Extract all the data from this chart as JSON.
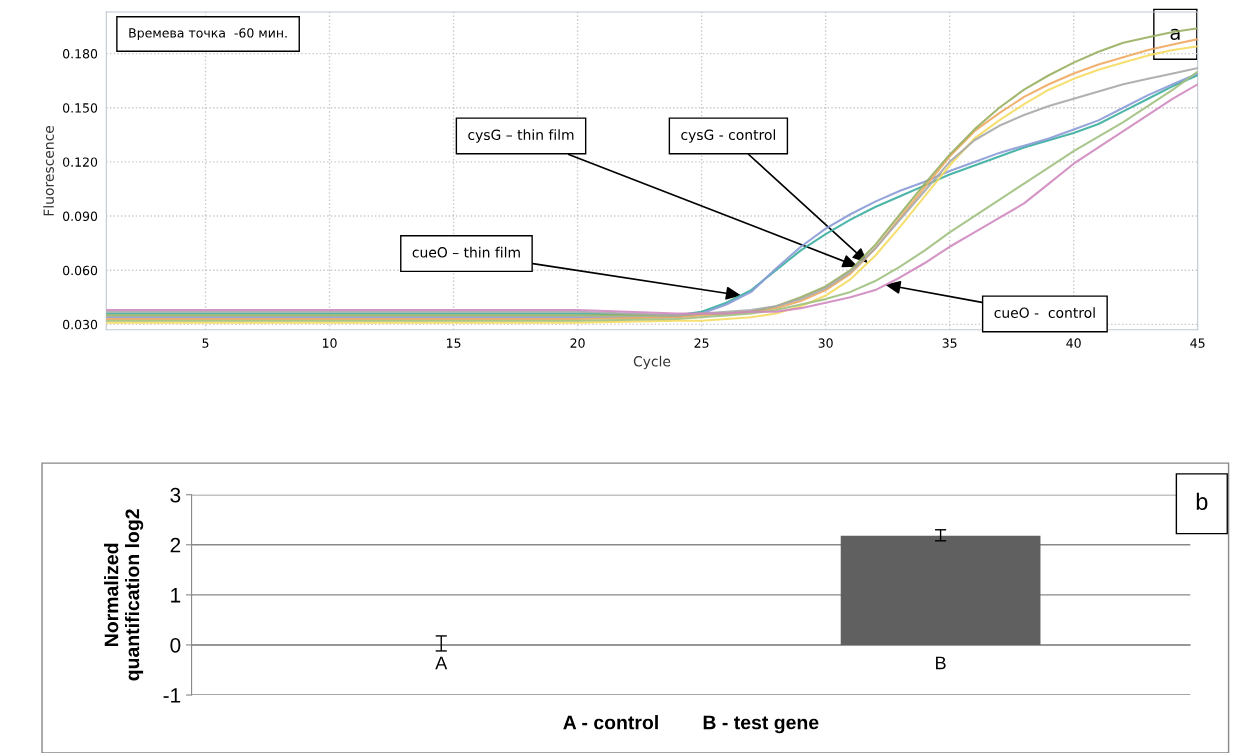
{
  "chart_data": [
    {
      "type": "line",
      "title": "Времева точка  -60 мин.",
      "xlabel": "Cycle",
      "ylabel": "Fluorescence",
      "x": [
        1,
        5,
        10,
        15,
        20,
        24,
        25,
        26,
        27,
        28,
        29,
        30,
        31,
        32,
        33,
        34,
        35,
        36,
        37,
        38,
        39,
        40,
        41,
        42,
        43,
        44,
        45
      ],
      "series": [
        {
          "color": "#3aaea0",
          "values": [
            0.036,
            0.036,
            0.036,
            0.036,
            0.036,
            0.035,
            0.037,
            0.042,
            0.049,
            0.06,
            0.071,
            0.08,
            0.088,
            0.095,
            0.101,
            0.107,
            0.113,
            0.118,
            0.123,
            0.128,
            0.132,
            0.136,
            0.141,
            0.148,
            0.155,
            0.162,
            0.168
          ]
        },
        {
          "color": "#8a9ad6",
          "values": [
            0.034,
            0.034,
            0.034,
            0.034,
            0.034,
            0.034,
            0.036,
            0.041,
            0.048,
            0.061,
            0.073,
            0.083,
            0.091,
            0.098,
            0.104,
            0.109,
            0.115,
            0.12,
            0.125,
            0.129,
            0.133,
            0.138,
            0.143,
            0.15,
            0.157,
            0.163,
            0.169
          ]
        },
        {
          "color": "#f0a860",
          "values": [
            0.033,
            0.033,
            0.033,
            0.033,
            0.033,
            0.034,
            0.035,
            0.036,
            0.037,
            0.039,
            0.043,
            0.049,
            0.058,
            0.072,
            0.089,
            0.106,
            0.123,
            0.137,
            0.147,
            0.156,
            0.163,
            0.169,
            0.174,
            0.178,
            0.182,
            0.185,
            0.188
          ]
        },
        {
          "color": "#98b060",
          "values": [
            0.035,
            0.035,
            0.035,
            0.035,
            0.035,
            0.035,
            0.036,
            0.036,
            0.037,
            0.04,
            0.045,
            0.051,
            0.06,
            0.074,
            0.091,
            0.108,
            0.124,
            0.138,
            0.15,
            0.16,
            0.168,
            0.175,
            0.181,
            0.186,
            0.189,
            0.192,
            0.194
          ]
        },
        {
          "color": "#f5dc60",
          "values": [
            0.031,
            0.031,
            0.031,
            0.031,
            0.031,
            0.032,
            0.032,
            0.033,
            0.034,
            0.036,
            0.04,
            0.046,
            0.055,
            0.068,
            0.084,
            0.101,
            0.118,
            0.133,
            0.143,
            0.152,
            0.16,
            0.166,
            0.171,
            0.175,
            0.179,
            0.182,
            0.184
          ]
        },
        {
          "color": "#a8a8a8",
          "values": [
            0.037,
            0.037,
            0.037,
            0.037,
            0.037,
            0.035,
            0.036,
            0.037,
            0.038,
            0.04,
            0.044,
            0.05,
            0.059,
            0.072,
            0.088,
            0.104,
            0.12,
            0.132,
            0.14,
            0.146,
            0.151,
            0.155,
            0.159,
            0.163,
            0.166,
            0.169,
            0.172
          ]
        },
        {
          "color": "#a0c080",
          "values": [
            0.032,
            0.032,
            0.032,
            0.032,
            0.032,
            0.033,
            0.034,
            0.035,
            0.036,
            0.038,
            0.041,
            0.044,
            0.048,
            0.054,
            0.062,
            0.071,
            0.081,
            0.09,
            0.099,
            0.108,
            0.117,
            0.126,
            0.134,
            0.142,
            0.151,
            0.16,
            0.17
          ]
        },
        {
          "color": "#d088c0",
          "values": [
            0.038,
            0.038,
            0.038,
            0.038,
            0.038,
            0.036,
            0.036,
            0.036,
            0.037,
            0.037,
            0.039,
            0.042,
            0.045,
            0.049,
            0.056,
            0.064,
            0.073,
            0.081,
            0.089,
            0.097,
            0.108,
            0.119,
            0.128,
            0.137,
            0.146,
            0.155,
            0.163
          ]
        }
      ],
      "xlim": [
        1,
        45
      ],
      "xticks": [
        5,
        10,
        15,
        20,
        25,
        30,
        35,
        40,
        45
      ],
      "ylim": [
        0.027,
        0.203
      ],
      "yticks": [
        {
          "value": 0.03,
          "label": "0.030"
        },
        {
          "value": 0.06,
          "label": "0.060"
        },
        {
          "value": 0.09,
          "label": "0.090"
        },
        {
          "value": 0.12,
          "label": "0.120"
        },
        {
          "value": 0.15,
          "label": "0.150"
        },
        {
          "value": 0.18,
          "label": "0.180"
        }
      ],
      "grid": true,
      "legend": false,
      "marker": "none",
      "line_style": "solid",
      "annotations": [
        {
          "text": "cueO – thin film",
          "x": 26.6,
          "y": 0.046
        },
        {
          "text": "cysG – thin film",
          "x": 31.3,
          "y": 0.062
        },
        {
          "text": "cysG - control",
          "x": 31.7,
          "y": 0.064
        },
        {
          "text": "cueO -  control",
          "x": 32.4,
          "y": 0.052
        },
        "a"
      ]
    },
    {
      "type": "bar",
      "ylabel": "Normalized\nquantification log2",
      "xlabel": "A - control        B - test gene",
      "categories": [
        "A",
        "B"
      ],
      "values": [
        0,
        2.18
      ],
      "color": "#606060",
      "errors": [
        [
          -0.12,
          0.18
        ],
        [
          2.08,
          2.3
        ]
      ],
      "ylim": [
        -1,
        3
      ],
      "yticks": [
        -1,
        0,
        1,
        2,
        3
      ],
      "grid": "y",
      "legend": false,
      "annotations": [
        "b"
      ]
    }
  ]
}
